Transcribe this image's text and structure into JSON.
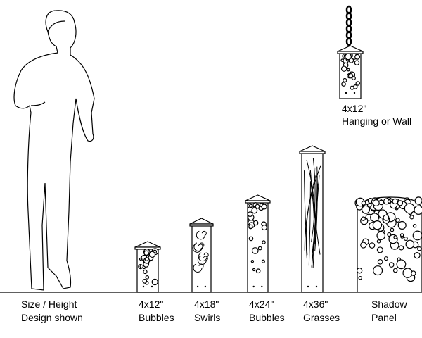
{
  "legend": {
    "line1": "Size / Height",
    "line2": "Design shown"
  },
  "products": [
    {
      "size": "4x12\"",
      "design": "Bubbles"
    },
    {
      "size": "4x18\"",
      "design": "Swirls"
    },
    {
      "size": "4x24\"",
      "design": "Bubbles"
    },
    {
      "size": "4x36\"",
      "design": "Grasses"
    },
    {
      "size": "Shadow",
      "design": "Panel"
    }
  ],
  "hanging": {
    "size": "4x12\"",
    "design": "Hanging or Wall"
  }
}
